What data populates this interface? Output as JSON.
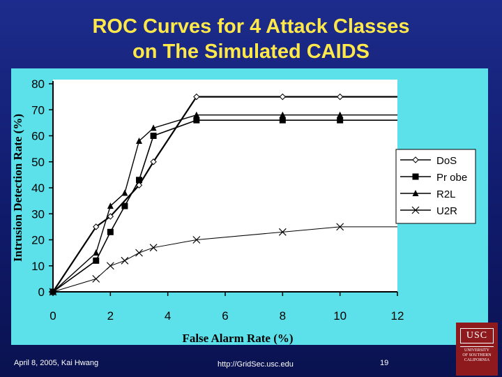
{
  "slide": {
    "title_line1": "ROC Curves for 4 Attack Classes",
    "title_line2": "on The Simulated CAIDS",
    "footer_left": "April 8, 2005,  Kai Hwang",
    "footer_url": "http://GridSec.usc.edu",
    "page_number": "19",
    "logo": {
      "seal": "USC",
      "line1": "UNIVERSITY",
      "line2": "OF SOUTHERN",
      "line3": "CALIFORNIA"
    },
    "colors": {
      "background": "#142080",
      "title": "#ffe94a",
      "chart_area": "#5ce0ea",
      "series_line": "#000000",
      "logo": "#8e1a1e"
    }
  },
  "chart_data": {
    "type": "line",
    "xlabel": "False Alarm Rate (%)",
    "ylabel": "Intrusion Detection Rate (%)",
    "xlim": [
      0,
      12
    ],
    "ylim": [
      0,
      80
    ],
    "xticks": [
      0,
      2,
      4,
      6,
      8,
      10,
      12
    ],
    "yticks": [
      0,
      10,
      20,
      30,
      40,
      50,
      60,
      70,
      80
    ],
    "grid": false,
    "legend_position": "right",
    "series": [
      {
        "name": "DoS",
        "marker": "diamond",
        "x": [
          0,
          1.5,
          2,
          3,
          3.5,
          5,
          8,
          10,
          12
        ],
        "y": [
          0,
          25,
          29,
          41,
          50,
          75,
          75,
          75,
          75
        ],
        "marked": [
          true,
          true,
          true,
          true,
          true,
          true,
          true,
          true,
          false
        ]
      },
      {
        "name": "Probe",
        "marker": "square",
        "x": [
          0,
          1.5,
          2,
          2.5,
          3,
          3.5,
          5,
          8,
          10,
          12
        ],
        "y": [
          0,
          12,
          23,
          33,
          43,
          60,
          66,
          66,
          66,
          66
        ],
        "marked": [
          true,
          true,
          true,
          true,
          true,
          true,
          true,
          true,
          true,
          false
        ]
      },
      {
        "name": "R2L",
        "marker": "triangle",
        "x": [
          0,
          1.5,
          2,
          2.5,
          3,
          3.5,
          5,
          8,
          10,
          12
        ],
        "y": [
          0,
          15,
          33,
          38,
          58,
          63,
          68,
          68,
          68,
          68
        ],
        "marked": [
          true,
          true,
          true,
          true,
          true,
          true,
          true,
          true,
          true,
          false
        ]
      },
      {
        "name": "U2R",
        "marker": "x",
        "x": [
          0,
          1.5,
          2,
          2.5,
          3,
          3.5,
          5,
          8,
          10,
          12
        ],
        "y": [
          0,
          5,
          10,
          12,
          15,
          17,
          20,
          23,
          25,
          25
        ],
        "marked": [
          true,
          true,
          true,
          true,
          true,
          true,
          true,
          true,
          true,
          false
        ]
      }
    ],
    "legend_labels": [
      "DoS",
      "Pr obe",
      "R2L",
      "U2R"
    ]
  }
}
